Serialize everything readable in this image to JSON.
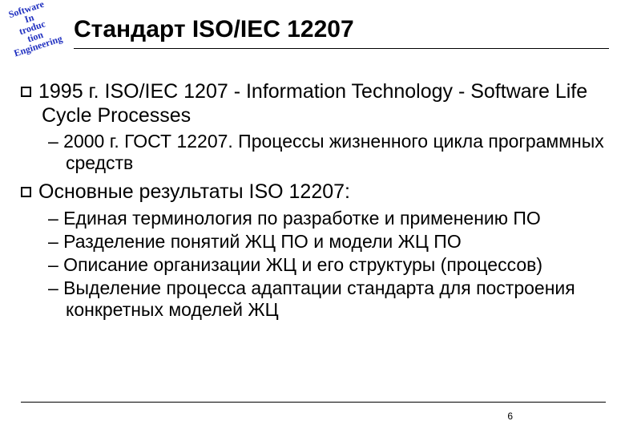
{
  "logo": {
    "line1": "Software",
    "line2": "In",
    "line3": "troduc",
    "line4": "tion",
    "line5": "Engineering"
  },
  "title": "Стандарт ISO/IEC 12207",
  "bullets": [
    {
      "text": "1995 г. ISO/IEC 1207 - Information Technology - Software Life Cycle Processes",
      "sub": [
        "– 2000 г. ГОСТ 12207. Процессы жизненного цикла программных средств"
      ]
    },
    {
      "text": "Основные результаты ISO 12207:",
      "sub": [
        "– Единая терминология по разработке и применению ПО",
        "– Разделение понятий ЖЦ ПО и модели ЖЦ ПО",
        "– Описание организации ЖЦ и его структуры (процессов)",
        "– Выделение процесса адаптации стандарта для построения конкретных моделей ЖЦ"
      ]
    }
  ],
  "page_number": "6",
  "colors": {
    "logo": "#2030c0",
    "text": "#000000",
    "bg": "#ffffff"
  },
  "fonts": {
    "title_size": 30,
    "l1_size": 25,
    "l2_size": 23
  }
}
